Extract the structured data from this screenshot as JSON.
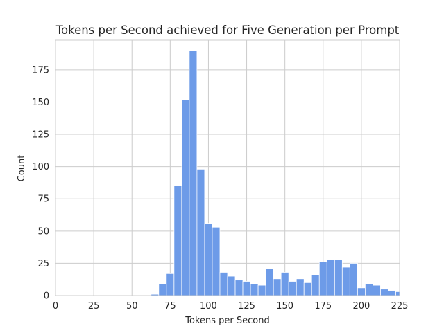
{
  "chart_data": {
    "type": "bar",
    "title": "Tokens per Second achieved for Five Generation per Prompt",
    "xlabel": "Tokens per Second",
    "ylabel": "Count",
    "xlim": [
      0,
      225
    ],
    "ylim": [
      0,
      198
    ],
    "xticks": [
      0,
      25,
      50,
      75,
      100,
      125,
      150,
      175,
      200,
      225
    ],
    "yticks": [
      0,
      25,
      50,
      75,
      100,
      125,
      150,
      175
    ],
    "grid": true,
    "bar_color": "#6d9be8",
    "grid_color": "#cccccc",
    "bins": [
      {
        "x0": 62.5,
        "x1": 67.5,
        "count": 1
      },
      {
        "x0": 67.5,
        "x1": 72.5,
        "count": 9
      },
      {
        "x0": 72.5,
        "x1": 77.5,
        "count": 17
      },
      {
        "x0": 77.5,
        "x1": 82.5,
        "count": 85
      },
      {
        "x0": 82.5,
        "x1": 87.5,
        "count": 152
      },
      {
        "x0": 87.5,
        "x1": 92.5,
        "count": 190
      },
      {
        "x0": 92.5,
        "x1": 97.5,
        "count": 98
      },
      {
        "x0": 97.5,
        "x1": 102.5,
        "count": 56
      },
      {
        "x0": 102.5,
        "x1": 107.5,
        "count": 53
      },
      {
        "x0": 107.5,
        "x1": 112.5,
        "count": 18
      },
      {
        "x0": 112.5,
        "x1": 117.5,
        "count": 15
      },
      {
        "x0": 117.5,
        "x1": 122.5,
        "count": 12
      },
      {
        "x0": 122.5,
        "x1": 127.5,
        "count": 11
      },
      {
        "x0": 127.5,
        "x1": 132.5,
        "count": 9
      },
      {
        "x0": 132.5,
        "x1": 137.5,
        "count": 8
      },
      {
        "x0": 137.5,
        "x1": 142.5,
        "count": 21
      },
      {
        "x0": 142.5,
        "x1": 147.5,
        "count": 13
      },
      {
        "x0": 147.5,
        "x1": 152.5,
        "count": 18
      },
      {
        "x0": 152.5,
        "x1": 157.5,
        "count": 11
      },
      {
        "x0": 157.5,
        "x1": 162.5,
        "count": 13
      },
      {
        "x0": 162.5,
        "x1": 167.5,
        "count": 10
      },
      {
        "x0": 167.5,
        "x1": 172.5,
        "count": 16
      },
      {
        "x0": 172.5,
        "x1": 177.5,
        "count": 26
      },
      {
        "x0": 177.5,
        "x1": 182.5,
        "count": 28
      },
      {
        "x0": 182.5,
        "x1": 187.5,
        "count": 28
      },
      {
        "x0": 187.5,
        "x1": 192.5,
        "count": 22
      },
      {
        "x0": 192.5,
        "x1": 197.5,
        "count": 25
      },
      {
        "x0": 197.5,
        "x1": 202.5,
        "count": 6
      },
      {
        "x0": 202.5,
        "x1": 207.5,
        "count": 9
      },
      {
        "x0": 207.5,
        "x1": 212.5,
        "count": 8
      },
      {
        "x0": 212.5,
        "x1": 217.5,
        "count": 5
      },
      {
        "x0": 217.5,
        "x1": 222.5,
        "count": 4
      },
      {
        "x0": 222.5,
        "x1": 225,
        "count": 3
      }
    ]
  }
}
